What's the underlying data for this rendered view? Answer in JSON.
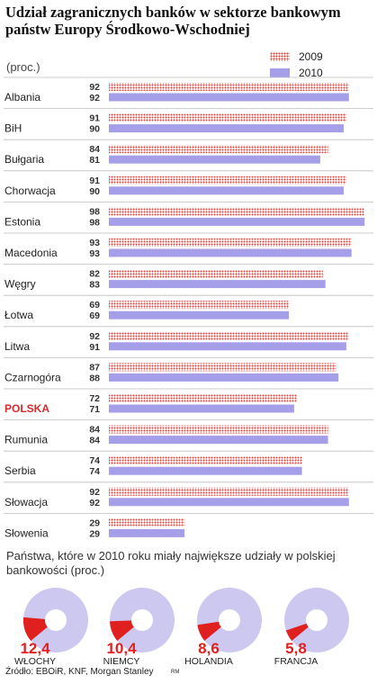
{
  "title": "Udział zagranicznych banków w sektorze bankowym państw Europy Środkowo-Wschodniej",
  "unit": "(proc.)",
  "legend": [
    {
      "label": "2009",
      "color": "#e23b2f"
    },
    {
      "label": "2010",
      "color": "#a59ee8"
    }
  ],
  "chart_data": [
    {
      "type": "bar",
      "orientation": "horizontal",
      "categories": [
        "Albania",
        "BiH",
        "Bułgaria",
        "Chorwacja",
        "Estonia",
        "Macedonia",
        "Węgry",
        "Łotwa",
        "Litwa",
        "Czarnogóra",
        "POLSKA",
        "Rumunia",
        "Serbia",
        "Słowacja",
        "Słowenia"
      ],
      "highlight_category": "POLSKA",
      "highlight_color": "#d42a2a",
      "series": [
        {
          "name": "2009",
          "values": [
            92,
            91,
            84,
            91,
            98,
            93,
            82,
            69,
            92,
            87,
            72,
            84,
            74,
            92,
            29
          ]
        },
        {
          "name": "2010",
          "values": [
            92,
            90,
            81,
            90,
            98,
            93,
            83,
            69,
            91,
            88,
            71,
            84,
            74,
            92,
            29
          ]
        }
      ],
      "xlim": [
        0,
        100
      ]
    },
    {
      "type": "pie",
      "title": "Państwa, które w 2010 roku miały największe udziały w polskiej bankowości (proc.)",
      "categories": [
        "WŁOCHY",
        "NIEMCY",
        "HOLANDIA",
        "FRANCJA"
      ],
      "values": [
        12.4,
        10.4,
        8.6,
        5.8
      ],
      "labels": [
        "12,4",
        "10,4",
        "8,6",
        "5,8"
      ],
      "highlight_color": "#e01f1f",
      "base_color": "#ccc8f0"
    }
  ],
  "source": "Źródło: EBOiR, KNF, Morgan Stanley",
  "credit": "RM"
}
